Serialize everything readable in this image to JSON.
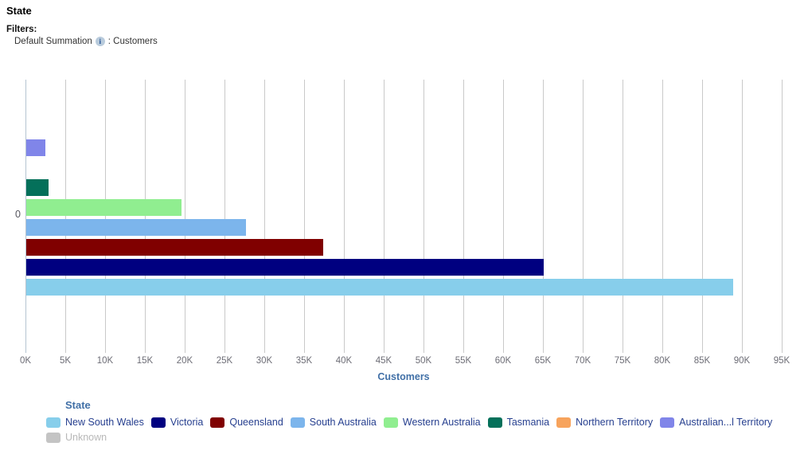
{
  "header": {
    "title": "State",
    "filters_label": "Filters:",
    "filter_prefix": "Default Summation",
    "info_icon": "i",
    "filter_suffix": ": Customers"
  },
  "chart_data": {
    "type": "bar",
    "orientation": "horizontal",
    "title": "State",
    "xlabel": "Customers",
    "ylabel": "",
    "category_labels": [
      "0"
    ],
    "x_ticks": [
      "0K",
      "5K",
      "10K",
      "15K",
      "20K",
      "25K",
      "30K",
      "35K",
      "40K",
      "45K",
      "50K",
      "55K",
      "60K",
      "65K",
      "70K",
      "75K",
      "80K",
      "85K",
      "90K",
      "95K"
    ],
    "xlim": [
      0,
      95000
    ],
    "grid": true,
    "bar_order": "series index 0 is the bottom bar",
    "series": [
      {
        "name": "New South Wales",
        "value": 88800,
        "color": "#87CEEB"
      },
      {
        "name": "Victoria",
        "value": 65000,
        "color": "#000080"
      },
      {
        "name": "Queensland",
        "value": 37300,
        "color": "#800000"
      },
      {
        "name": "South Australia",
        "value": 27600,
        "color": "#7CB5EC"
      },
      {
        "name": "Western Australia",
        "value": 19500,
        "color": "#90EE90"
      },
      {
        "name": "Tasmania",
        "value": 2800,
        "color": "#04705A"
      },
      {
        "name": "Northern Territory",
        "value": 0,
        "color": "#F7A35C"
      },
      {
        "name": "Australian...l Territory",
        "value": 2400,
        "color": "#8085E9"
      },
      {
        "name": "Unknown",
        "value": 0,
        "color": "#C4C4C4"
      }
    ],
    "legend": {
      "title": "State",
      "position": "bottom",
      "rows": [
        [
          "New South Wales",
          "Victoria",
          "Queensland",
          "South Australia",
          "Western Australia",
          "Tasmania",
          "Northern Territory",
          "Australian...l Territory"
        ],
        [
          "Unknown"
        ]
      ],
      "muted_items": [
        "Unknown"
      ]
    }
  },
  "colors": {
    "axis_title": "#4170A7",
    "legend_title": "#4170A7",
    "legend_label": "#263F8F",
    "tick_label": "#6D6D76",
    "gridline": "#C9C9C9",
    "axis_line": "#B5C4D1",
    "muted_text": "#B8B8B8"
  }
}
